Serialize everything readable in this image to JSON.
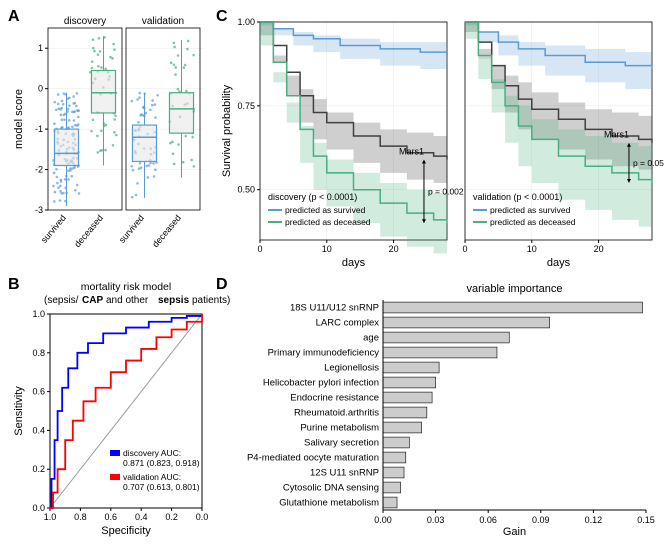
{
  "panelA": {
    "label": "A",
    "type": "boxplot_jitter",
    "ylabel": "model score",
    "ylim": [
      -3,
      1.5
    ],
    "yticks": [
      -3,
      -2,
      -1,
      0,
      1
    ],
    "facets": [
      "discovery",
      "validation"
    ],
    "categories": [
      "survived",
      "deceased"
    ],
    "colors": {
      "survived": "#5b9bd5",
      "deceased": "#4aae80"
    },
    "box_fill": "#e8e8e8",
    "boxes": [
      {
        "facet": 0,
        "cat": 0,
        "q1": -1.9,
        "median": -1.6,
        "q3": -1.0,
        "w_lo": -2.9,
        "w_hi": -0.1
      },
      {
        "facet": 0,
        "cat": 1,
        "q1": -0.6,
        "median": -0.1,
        "q3": 0.45,
        "w_lo": -1.9,
        "w_hi": 1.3
      },
      {
        "facet": 1,
        "cat": 0,
        "q1": -1.8,
        "median": -1.2,
        "q3": -0.9,
        "w_lo": -2.7,
        "w_hi": -0.1
      },
      {
        "facet": 1,
        "cat": 1,
        "q1": -1.1,
        "median": -0.5,
        "q3": -0.1,
        "w_lo": -2.2,
        "w_hi": 1.2
      }
    ],
    "n_points": {
      "f0c0": 120,
      "f0c1": 45,
      "f1c0": 55,
      "f1c1": 35
    }
  },
  "panelB": {
    "label": "B",
    "type": "roc",
    "title_line1": "mortality risk model",
    "title_line2": "(sepsis/        and other             patients)",
    "title_bold1": "CAP",
    "title_bold2": "sepsis",
    "xlabel": "Specificity",
    "ylabel": "Sensitivity",
    "xlim": [
      1.0,
      0.0
    ],
    "ylim": [
      0.0,
      1.0
    ],
    "xticks": [
      1.0,
      0.8,
      0.6,
      0.4,
      0.2,
      0.0
    ],
    "yticks": [
      0.0,
      0.2,
      0.4,
      0.6,
      0.8,
      1.0
    ],
    "diag_color": "#999999",
    "curves": [
      {
        "name": "discovery",
        "color": "#0000ff",
        "legend": "discovery AUC:",
        "auc": "0.871 (0.823, 0.918)",
        "pts": [
          [
            1,
            0
          ],
          [
            0.99,
            0.15
          ],
          [
            0.97,
            0.35
          ],
          [
            0.95,
            0.5
          ],
          [
            0.92,
            0.62
          ],
          [
            0.88,
            0.72
          ],
          [
            0.82,
            0.8
          ],
          [
            0.75,
            0.85
          ],
          [
            0.65,
            0.9
          ],
          [
            0.5,
            0.93
          ],
          [
            0.35,
            0.96
          ],
          [
            0.2,
            0.98
          ],
          [
            0.1,
            0.99
          ],
          [
            0,
            1
          ]
        ]
      },
      {
        "name": "validation",
        "color": "#ff0000",
        "legend": "validation AUC:",
        "auc": "0.707 (0.613, 0.801)",
        "pts": [
          [
            1,
            0
          ],
          [
            0.98,
            0.08
          ],
          [
            0.95,
            0.2
          ],
          [
            0.9,
            0.35
          ],
          [
            0.85,
            0.45
          ],
          [
            0.78,
            0.55
          ],
          [
            0.7,
            0.62
          ],
          [
            0.6,
            0.7
          ],
          [
            0.5,
            0.76
          ],
          [
            0.4,
            0.82
          ],
          [
            0.3,
            0.88
          ],
          [
            0.2,
            0.92
          ],
          [
            0.1,
            0.96
          ],
          [
            0,
            1
          ]
        ]
      }
    ]
  },
  "panelC": {
    "label": "C",
    "type": "survival",
    "xlabel": "days",
    "ylabel": "Survival probability",
    "xlim": [
      0,
      28
    ],
    "ylim": [
      0.35,
      1.0
    ],
    "xticks": [
      0,
      10,
      20
    ],
    "yticks": [
      0.5,
      0.75,
      1.0
    ],
    "colors": {
      "survived": "#5b9bd5",
      "deceased": "#4aae80",
      "mars": "#404040"
    },
    "band_alpha": 0.25,
    "legend_items": [
      "predicted as survived",
      "predicted as deceased"
    ],
    "mars_label": "Mars1",
    "subplots": [
      {
        "title": "discovery (p < 0.0001)",
        "p_annot": "p = 0.002",
        "survived": [
          [
            0,
            1
          ],
          [
            2,
            0.98
          ],
          [
            5,
            0.96
          ],
          [
            8,
            0.95
          ],
          [
            12,
            0.93
          ],
          [
            18,
            0.92
          ],
          [
            24,
            0.91
          ],
          [
            28,
            0.91
          ]
        ],
        "survived_lo": [
          [
            0,
            1
          ],
          [
            2,
            0.96
          ],
          [
            5,
            0.93
          ],
          [
            8,
            0.91
          ],
          [
            12,
            0.89
          ],
          [
            18,
            0.87
          ],
          [
            24,
            0.86
          ],
          [
            28,
            0.86
          ]
        ],
        "survived_hi": [
          [
            0,
            1
          ],
          [
            2,
            0.99
          ],
          [
            5,
            0.98
          ],
          [
            8,
            0.97
          ],
          [
            12,
            0.96
          ],
          [
            18,
            0.95
          ],
          [
            24,
            0.94
          ],
          [
            28,
            0.94
          ]
        ],
        "deceased": [
          [
            0,
            1
          ],
          [
            2,
            0.88
          ],
          [
            4,
            0.78
          ],
          [
            6,
            0.68
          ],
          [
            8,
            0.6
          ],
          [
            10,
            0.55
          ],
          [
            14,
            0.5
          ],
          [
            18,
            0.46
          ],
          [
            22,
            0.43
          ],
          [
            26,
            0.41
          ],
          [
            28,
            0.4
          ]
        ],
        "deceased_lo": [
          [
            0,
            1
          ],
          [
            2,
            0.82
          ],
          [
            4,
            0.7
          ],
          [
            6,
            0.58
          ],
          [
            8,
            0.5
          ],
          [
            10,
            0.45
          ],
          [
            14,
            0.4
          ],
          [
            18,
            0.36
          ],
          [
            22,
            0.33
          ],
          [
            26,
            0.31
          ],
          [
            28,
            0.3
          ]
        ],
        "deceased_hi": [
          [
            0,
            1
          ],
          [
            2,
            0.93
          ],
          [
            4,
            0.85
          ],
          [
            6,
            0.76
          ],
          [
            8,
            0.69
          ],
          [
            10,
            0.64
          ],
          [
            14,
            0.59
          ],
          [
            18,
            0.55
          ],
          [
            22,
            0.52
          ],
          [
            26,
            0.5
          ],
          [
            28,
            0.49
          ]
        ],
        "mars": [
          [
            0,
            1
          ],
          [
            2,
            0.93
          ],
          [
            4,
            0.85
          ],
          [
            6,
            0.78
          ],
          [
            8,
            0.73
          ],
          [
            10,
            0.7
          ],
          [
            14,
            0.66
          ],
          [
            18,
            0.63
          ],
          [
            22,
            0.61
          ],
          [
            26,
            0.6
          ],
          [
            28,
            0.59
          ]
        ],
        "mars_lo": [
          [
            0,
            1
          ],
          [
            2,
            0.88
          ],
          [
            4,
            0.78
          ],
          [
            6,
            0.7
          ],
          [
            8,
            0.65
          ],
          [
            10,
            0.62
          ],
          [
            14,
            0.58
          ],
          [
            18,
            0.55
          ],
          [
            22,
            0.53
          ],
          [
            26,
            0.52
          ],
          [
            28,
            0.51
          ]
        ],
        "mars_hi": [
          [
            0,
            1
          ],
          [
            2,
            0.96
          ],
          [
            4,
            0.9
          ],
          [
            6,
            0.84
          ],
          [
            8,
            0.8
          ],
          [
            10,
            0.77
          ],
          [
            14,
            0.73
          ],
          [
            18,
            0.7
          ],
          [
            22,
            0.68
          ],
          [
            26,
            0.67
          ],
          [
            28,
            0.66
          ]
        ]
      },
      {
        "title": "validation (p < 0.0001)",
        "p_annot": "p = 0.05",
        "survived": [
          [
            0,
            1
          ],
          [
            2,
            0.97
          ],
          [
            5,
            0.94
          ],
          [
            8,
            0.92
          ],
          [
            12,
            0.9
          ],
          [
            18,
            0.88
          ],
          [
            24,
            0.87
          ],
          [
            28,
            0.86
          ]
        ],
        "survived_lo": [
          [
            0,
            1
          ],
          [
            2,
            0.94
          ],
          [
            5,
            0.9
          ],
          [
            8,
            0.87
          ],
          [
            12,
            0.84
          ],
          [
            18,
            0.82
          ],
          [
            24,
            0.8
          ],
          [
            28,
            0.79
          ]
        ],
        "survived_hi": [
          [
            0,
            1
          ],
          [
            2,
            0.99
          ],
          [
            5,
            0.97
          ],
          [
            8,
            0.96
          ],
          [
            12,
            0.94
          ],
          [
            18,
            0.93
          ],
          [
            24,
            0.92
          ],
          [
            28,
            0.91
          ]
        ],
        "deceased": [
          [
            0,
            1
          ],
          [
            2,
            0.9
          ],
          [
            4,
            0.82
          ],
          [
            6,
            0.75
          ],
          [
            8,
            0.69
          ],
          [
            10,
            0.65
          ],
          [
            14,
            0.6
          ],
          [
            18,
            0.57
          ],
          [
            22,
            0.55
          ],
          [
            26,
            0.53
          ],
          [
            28,
            0.52
          ]
        ],
        "deceased_lo": [
          [
            0,
            1
          ],
          [
            2,
            0.83
          ],
          [
            4,
            0.73
          ],
          [
            6,
            0.64
          ],
          [
            8,
            0.57
          ],
          [
            10,
            0.52
          ],
          [
            14,
            0.47
          ],
          [
            18,
            0.44
          ],
          [
            22,
            0.41
          ],
          [
            26,
            0.39
          ],
          [
            28,
            0.38
          ]
        ],
        "deceased_hi": [
          [
            0,
            1
          ],
          [
            2,
            0.95
          ],
          [
            4,
            0.89
          ],
          [
            6,
            0.83
          ],
          [
            8,
            0.78
          ],
          [
            10,
            0.75
          ],
          [
            14,
            0.71
          ],
          [
            18,
            0.68
          ],
          [
            22,
            0.66
          ],
          [
            26,
            0.64
          ],
          [
            28,
            0.63
          ]
        ],
        "mars": [
          [
            0,
            1
          ],
          [
            2,
            0.94
          ],
          [
            4,
            0.87
          ],
          [
            6,
            0.81
          ],
          [
            8,
            0.77
          ],
          [
            10,
            0.74
          ],
          [
            14,
            0.71
          ],
          [
            18,
            0.68
          ],
          [
            22,
            0.66
          ],
          [
            26,
            0.65
          ],
          [
            28,
            0.64
          ]
        ],
        "mars_lo": [
          [
            0,
            1
          ],
          [
            2,
            0.89
          ],
          [
            4,
            0.8
          ],
          [
            6,
            0.73
          ],
          [
            8,
            0.68
          ],
          [
            10,
            0.65
          ],
          [
            14,
            0.62
          ],
          [
            18,
            0.59
          ],
          [
            22,
            0.57
          ],
          [
            26,
            0.56
          ],
          [
            28,
            0.55
          ]
        ],
        "mars_hi": [
          [
            0,
            1
          ],
          [
            2,
            0.97
          ],
          [
            4,
            0.92
          ],
          [
            6,
            0.87
          ],
          [
            8,
            0.84
          ],
          [
            10,
            0.82
          ],
          [
            14,
            0.79
          ],
          [
            18,
            0.76
          ],
          [
            22,
            0.74
          ],
          [
            26,
            0.73
          ],
          [
            28,
            0.72
          ]
        ]
      }
    ]
  },
  "panelD": {
    "label": "D",
    "type": "bar_horizontal",
    "title": "variable importance",
    "xlabel": "Gain",
    "xlim": [
      0.0,
      0.15
    ],
    "xticks": [
      0.0,
      0.03,
      0.06,
      0.09,
      0.12,
      0.15
    ],
    "bar_fill": "#cccccc",
    "bar_stroke": "#000000",
    "items": [
      {
        "label": "18S U11/U12 snRNP",
        "value": 0.148
      },
      {
        "label": "LARC complex",
        "value": 0.095
      },
      {
        "label": "age",
        "value": 0.072
      },
      {
        "label": "Primary immunodeficiency",
        "value": 0.065
      },
      {
        "label": "Legionellosis",
        "value": 0.032
      },
      {
        "label": "Helicobacter pylori infection",
        "value": 0.03
      },
      {
        "label": "Endocrine resistance",
        "value": 0.028
      },
      {
        "label": "Rheumatoid.arthritis",
        "value": 0.025
      },
      {
        "label": "Purine metabolism",
        "value": 0.022
      },
      {
        "label": "Salivary secretion",
        "value": 0.015
      },
      {
        "label": "P4-mediated oocyte maturation",
        "value": 0.013
      },
      {
        "label": "12S U11 snRNP",
        "value": 0.012
      },
      {
        "label": "Cytosolic DNA sensing",
        "value": 0.01
      },
      {
        "label": "Glutathione metabolism",
        "value": 0.008
      }
    ]
  }
}
